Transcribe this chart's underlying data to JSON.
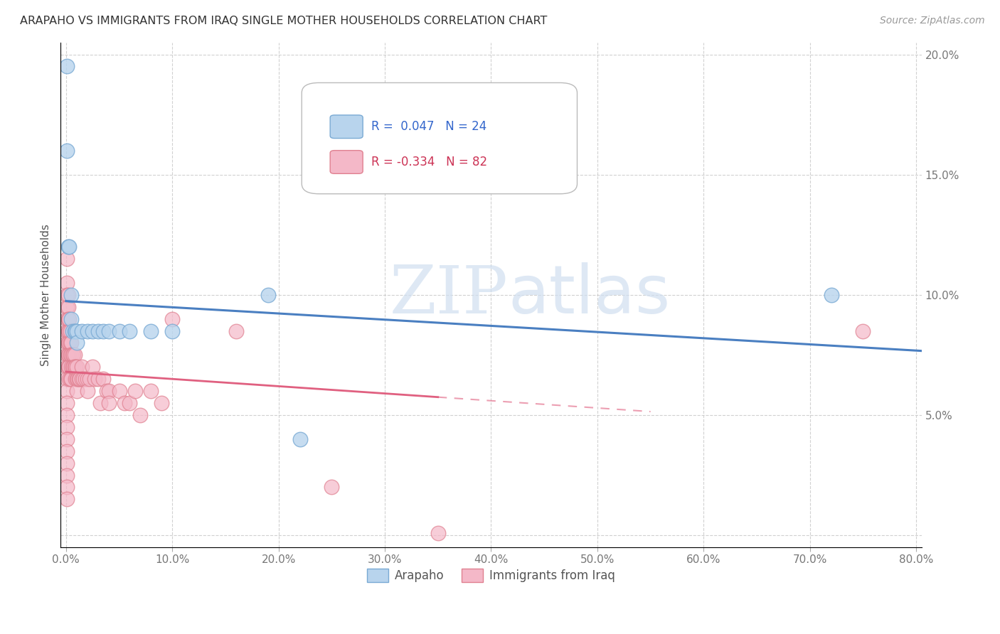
{
  "title": "ARAPAHO VS IMMIGRANTS FROM IRAQ SINGLE MOTHER HOUSEHOLDS CORRELATION CHART",
  "source": "Source: ZipAtlas.com",
  "ylabel": "Single Mother Households",
  "xlabel": "",
  "xlim": [
    -0.005,
    0.805
  ],
  "ylim": [
    -0.005,
    0.205
  ],
  "xticks": [
    0.0,
    0.1,
    0.2,
    0.3,
    0.4,
    0.5,
    0.6,
    0.7,
    0.8
  ],
  "yticks": [
    0.0,
    0.05,
    0.1,
    0.15,
    0.2
  ],
  "xtick_labels": [
    "0.0%",
    "10.0%",
    "20.0%",
    "30.0%",
    "40.0%",
    "50.0%",
    "60.0%",
    "70.0%",
    "80.0%"
  ],
  "ytick_labels_right": [
    "",
    "5.0%",
    "10.0%",
    "15.0%",
    "20.0%"
  ],
  "arapaho_color": "#b8d4ed",
  "arapaho_edge_color": "#7aaad4",
  "iraq_color": "#f4b8c8",
  "iraq_edge_color": "#e08090",
  "arapaho_r": 0.047,
  "arapaho_n": 24,
  "iraq_r": -0.334,
  "iraq_n": 82,
  "legend_label_1": "Arapaho",
  "legend_label_2": "Immigrants from Iraq",
  "watermark_zip": "ZIP",
  "watermark_atlas": "atlas",
  "blue_line_color": "#4a7fc1",
  "pink_line_color": "#e06080",
  "arapaho_x": [
    0.001,
    0.001,
    0.002,
    0.003,
    0.005,
    0.005,
    0.006,
    0.008,
    0.009,
    0.01,
    0.01,
    0.015,
    0.02,
    0.025,
    0.03,
    0.035,
    0.04,
    0.05,
    0.06,
    0.08,
    0.1,
    0.19,
    0.22,
    0.72
  ],
  "arapaho_y": [
    0.195,
    0.16,
    0.12,
    0.12,
    0.1,
    0.09,
    0.085,
    0.085,
    0.085,
    0.085,
    0.08,
    0.085,
    0.085,
    0.085,
    0.085,
    0.085,
    0.085,
    0.085,
    0.085,
    0.085,
    0.085,
    0.1,
    0.04,
    0.1
  ],
  "iraq_x": [
    0.001,
    0.001,
    0.001,
    0.001,
    0.001,
    0.001,
    0.001,
    0.001,
    0.001,
    0.001,
    0.001,
    0.001,
    0.001,
    0.001,
    0.001,
    0.001,
    0.001,
    0.001,
    0.001,
    0.001,
    0.002,
    0.002,
    0.002,
    0.002,
    0.002,
    0.002,
    0.002,
    0.003,
    0.003,
    0.003,
    0.003,
    0.003,
    0.003,
    0.004,
    0.004,
    0.004,
    0.004,
    0.005,
    0.005,
    0.005,
    0.005,
    0.006,
    0.006,
    0.007,
    0.007,
    0.008,
    0.008,
    0.009,
    0.009,
    0.01,
    0.01,
    0.01,
    0.011,
    0.012,
    0.013,
    0.015,
    0.015,
    0.016,
    0.018,
    0.02,
    0.02,
    0.022,
    0.025,
    0.027,
    0.03,
    0.032,
    0.035,
    0.038,
    0.04,
    0.04,
    0.05,
    0.055,
    0.06,
    0.065,
    0.07,
    0.08,
    0.09,
    0.1,
    0.16,
    0.25,
    0.35,
    0.75
  ],
  "iraq_y": [
    0.115,
    0.105,
    0.1,
    0.095,
    0.09,
    0.085,
    0.08,
    0.075,
    0.07,
    0.065,
    0.06,
    0.055,
    0.05,
    0.045,
    0.04,
    0.035,
    0.03,
    0.025,
    0.02,
    0.015,
    0.1,
    0.095,
    0.09,
    0.085,
    0.08,
    0.075,
    0.07,
    0.09,
    0.085,
    0.08,
    0.075,
    0.07,
    0.065,
    0.085,
    0.08,
    0.075,
    0.065,
    0.08,
    0.075,
    0.07,
    0.065,
    0.075,
    0.07,
    0.075,
    0.07,
    0.075,
    0.07,
    0.07,
    0.065,
    0.07,
    0.065,
    0.06,
    0.065,
    0.065,
    0.065,
    0.07,
    0.065,
    0.065,
    0.065,
    0.065,
    0.06,
    0.065,
    0.07,
    0.065,
    0.065,
    0.055,
    0.065,
    0.06,
    0.06,
    0.055,
    0.06,
    0.055,
    0.055,
    0.06,
    0.05,
    0.06,
    0.055,
    0.09,
    0.085,
    0.02,
    0.001,
    0.085
  ]
}
